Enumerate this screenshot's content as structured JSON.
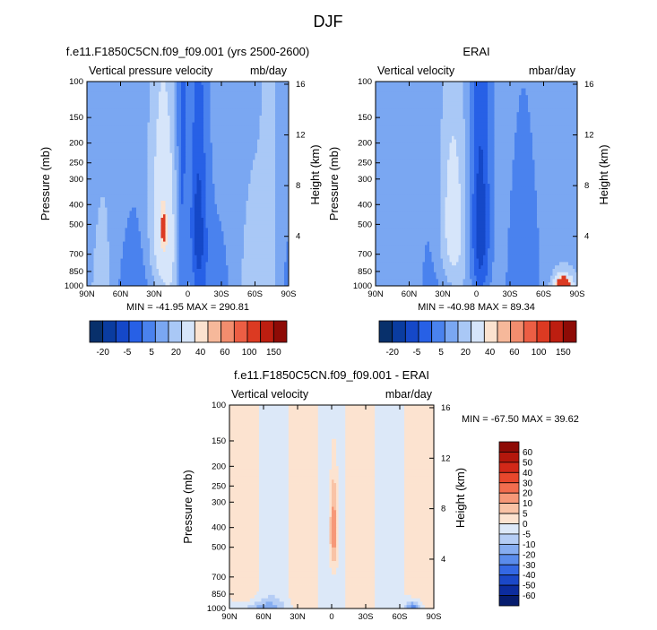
{
  "figure_title": "DJF",
  "chart_data": [
    {
      "type": "heatmap",
      "title": "f.e11.F1850C5CN.f09_f09.001 (yrs 2500-2600)",
      "left_string": "Vertical pressure velocity",
      "right_string": "mb/day",
      "ylabel": "Pressure (mb)",
      "y2label": "Height (km)",
      "x_ticks": [
        "90N",
        "60N",
        "30N",
        "0",
        "30S",
        "60S",
        "90S"
      ],
      "y_ticks": [
        "100",
        "150",
        "200",
        "250",
        "300",
        "400",
        "500",
        "700",
        "850",
        "1000"
      ],
      "y_ticks_values": [
        100,
        150,
        200,
        250,
        300,
        400,
        500,
        700,
        850,
        1000
      ],
      "height_ticks": [
        "16",
        "12",
        "8",
        "4"
      ],
      "height_ticks_values": [
        16,
        12,
        8,
        4
      ],
      "min_max": "MIN = -41.95  MAX = 290.81",
      "colorbar": {
        "orientation": "horizontal",
        "labels": [
          "-20",
          "-5",
          "5",
          "20",
          "40",
          "60",
          "100",
          "150"
        ],
        "colors": [
          "#08306b",
          "#0a3ca0",
          "#1548c8",
          "#2760e6",
          "#4a82ee",
          "#7aa7f2",
          "#a9c8f6",
          "#d6e5fa",
          "#fbe2cf",
          "#f6b89a",
          "#f28d6e",
          "#ec5e44",
          "#dc3a22",
          "#bd1e10",
          "#8e0b06"
        ]
      },
      "field_type": "model",
      "range": [
        -41.95,
        290.81
      ]
    },
    {
      "type": "heatmap",
      "title": "ERAI",
      "left_string": "Vertical velocity",
      "right_string": "mbar/day",
      "ylabel": "Pressure (mb)",
      "y2label": "Height (km)",
      "x_ticks": [
        "90N",
        "60N",
        "30N",
        "0",
        "30S",
        "60S",
        "90S"
      ],
      "y_ticks": [
        "100",
        "150",
        "200",
        "250",
        "300",
        "400",
        "500",
        "700",
        "850",
        "1000"
      ],
      "y_ticks_values": [
        100,
        150,
        200,
        250,
        300,
        400,
        500,
        700,
        850,
        1000
      ],
      "height_ticks": [
        "16",
        "12",
        "8",
        "4"
      ],
      "height_ticks_values": [
        16,
        12,
        8,
        4
      ],
      "min_max": "MIN = -40.98  MAX = 89.34",
      "colorbar": {
        "orientation": "horizontal",
        "labels": [
          "-20",
          "-5",
          "5",
          "20",
          "40",
          "60",
          "100",
          "150"
        ],
        "colors": [
          "#08306b",
          "#0a3ca0",
          "#1548c8",
          "#2760e6",
          "#4a82ee",
          "#7aa7f2",
          "#a9c8f6",
          "#d6e5fa",
          "#fbe2cf",
          "#f6b89a",
          "#f28d6e",
          "#ec5e44",
          "#dc3a22",
          "#bd1e10",
          "#8e0b06"
        ]
      },
      "field_type": "obs",
      "range": [
        -40.98,
        89.34
      ]
    },
    {
      "type": "heatmap",
      "title": "f.e11.F1850C5CN.f09_f09.001 - ERAI",
      "left_string": "Vertical velocity",
      "right_string": "mbar/day",
      "ylabel": "Pressure (mb)",
      "y2label": "Height (km)",
      "x_ticks": [
        "90N",
        "60N",
        "30N",
        "0",
        "30S",
        "60S",
        "90S"
      ],
      "y_ticks": [
        "100",
        "150",
        "200",
        "250",
        "300",
        "400",
        "500",
        "700",
        "850",
        "1000"
      ],
      "y_ticks_values": [
        100,
        150,
        200,
        250,
        300,
        400,
        500,
        700,
        850,
        1000
      ],
      "height_ticks": [
        "16",
        "12",
        "8",
        "4"
      ],
      "height_ticks_values": [
        16,
        12,
        8,
        4
      ],
      "min_max": "MIN = -67.50  MAX = 39.62",
      "colorbar": {
        "orientation": "vertical",
        "labels": [
          "60",
          "50",
          "40",
          "30",
          "20",
          "10",
          "5",
          "0",
          "-5",
          "-10",
          "-20",
          "-30",
          "-40",
          "-50",
          "-60"
        ],
        "colors": [
          "#8e0b06",
          "#b4170c",
          "#d22818",
          "#e8472c",
          "#f26d4e",
          "#f69878",
          "#f9c3a6",
          "#fce3d0",
          "#dce8f8",
          "#b5cdf5",
          "#86adf1",
          "#5a8cec",
          "#3468e4",
          "#1b48c8",
          "#0c2c9e",
          "#061c6e"
        ]
      },
      "field_type": "diff",
      "range": [
        -67.5,
        39.62
      ]
    }
  ]
}
